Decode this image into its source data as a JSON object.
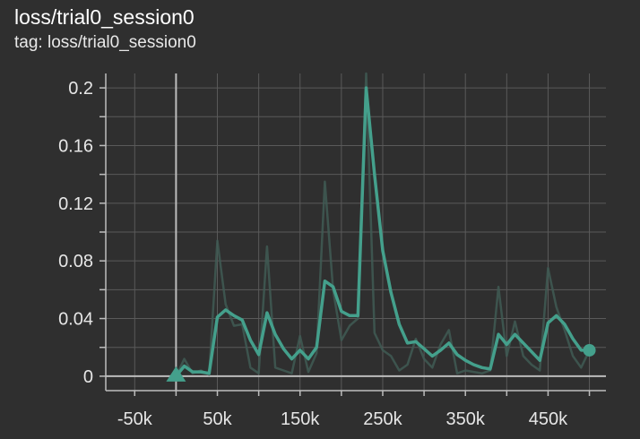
{
  "card": {
    "title": "loss/trial0_session0",
    "tag": "tag: loss/trial0_session0"
  },
  "colors": {
    "background": "#2f2f2f",
    "smoothed": "#44a08c",
    "raw": "#3f5a53",
    "grid": "#5a5a5a",
    "axis": "#bdbdbd"
  },
  "chart_data": {
    "type": "line",
    "title": "loss/trial0_session0",
    "xlabel": "",
    "ylabel": "",
    "xlim": [
      -85000,
      520000
    ],
    "ylim": [
      -0.01,
      0.21
    ],
    "x_ticks": [
      -50000,
      50000,
      150000,
      250000,
      350000,
      450000
    ],
    "x_tick_labels": [
      "-50k",
      "50k",
      "150k",
      "250k",
      "350k",
      "450k"
    ],
    "y_ticks": [
      0,
      0.04,
      0.08,
      0.12,
      0.16,
      0.2
    ],
    "y_tick_labels": [
      "0",
      "0.04",
      "0.08",
      "0.12",
      "0.16",
      "0.2"
    ],
    "grid": true,
    "series": [
      {
        "style": "raw",
        "x": [
          0,
          10000,
          20000,
          30000,
          40000,
          50000,
          60000,
          70000,
          80000,
          90000,
          100000,
          110000,
          120000,
          130000,
          140000,
          150000,
          160000,
          170000,
          180000,
          190000,
          200000,
          210000,
          220000,
          230000,
          240000,
          250000,
          260000,
          270000,
          280000,
          290000,
          300000,
          310000,
          320000,
          330000,
          340000,
          350000,
          360000,
          370000,
          380000,
          390000,
          400000,
          410000,
          420000,
          430000,
          440000,
          450000,
          460000,
          470000,
          480000,
          490000,
          500000
        ],
        "y": [
          0,
          0.012,
          0.002,
          0.004,
          0.001,
          0.094,
          0.05,
          0.035,
          0.036,
          0.006,
          0.002,
          0.09,
          0.006,
          0.004,
          0.002,
          0.028,
          0.003,
          0.016,
          0.135,
          0.06,
          0.025,
          0.035,
          0.04,
          0.21,
          0.03,
          0.018,
          0.014,
          0.004,
          0.008,
          0.026,
          0.012,
          0.006,
          0.022,
          0.032,
          0.002,
          0.004,
          0.003,
          0.002,
          0.004,
          0.062,
          0.014,
          0.038,
          0.014,
          0.008,
          0.004,
          0.075,
          0.048,
          0.032,
          0.014,
          0.006,
          0.018
        ]
      },
      {
        "style": "smoothed",
        "x": [
          0,
          10000,
          20000,
          30000,
          40000,
          50000,
          60000,
          70000,
          80000,
          90000,
          100000,
          110000,
          120000,
          130000,
          140000,
          150000,
          160000,
          170000,
          180000,
          190000,
          200000,
          210000,
          220000,
          230000,
          240000,
          250000,
          260000,
          270000,
          280000,
          290000,
          300000,
          310000,
          320000,
          330000,
          340000,
          350000,
          360000,
          370000,
          380000,
          390000,
          400000,
          410000,
          420000,
          430000,
          440000,
          450000,
          460000,
          470000,
          480000,
          490000,
          500000
        ],
        "y": [
          0,
          0.007,
          0.003,
          0.003,
          0.002,
          0.041,
          0.046,
          0.042,
          0.039,
          0.025,
          0.015,
          0.044,
          0.029,
          0.019,
          0.012,
          0.018,
          0.012,
          0.02,
          0.066,
          0.062,
          0.045,
          0.042,
          0.042,
          0.2,
          0.14,
          0.087,
          0.058,
          0.036,
          0.023,
          0.024,
          0.019,
          0.014,
          0.018,
          0.023,
          0.015,
          0.011,
          0.008,
          0.006,
          0.005,
          0.029,
          0.022,
          0.029,
          0.023,
          0.017,
          0.011,
          0.037,
          0.042,
          0.036,
          0.026,
          0.018,
          0.018
        ]
      }
    ],
    "start_marker": "triangle",
    "end_marker": "circle"
  }
}
